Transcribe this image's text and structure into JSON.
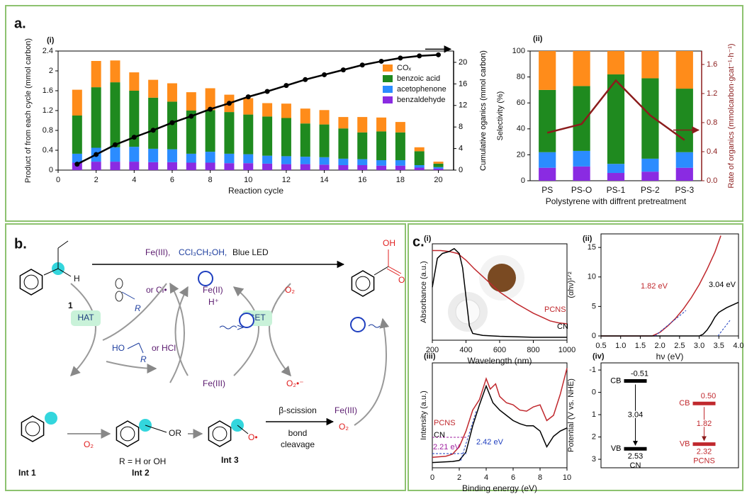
{
  "panels": {
    "a": "a.",
    "b": "b.",
    "c": "c."
  },
  "chart_data": [
    {
      "type": "bar",
      "stacked": true,
      "panel_label": "(i)",
      "xlabel": "Reaction cycle",
      "ylabel": "Product of from each cycle (mmol carbon)",
      "y2label": "Cumulative oganics (mmol carbon)",
      "x": [
        1,
        2,
        3,
        4,
        5,
        6,
        7,
        8,
        9,
        10,
        11,
        12,
        13,
        14,
        15,
        16,
        17,
        18,
        19,
        20
      ],
      "xlim": [
        0,
        20.8
      ],
      "xticks": [
        0,
        2,
        4,
        6,
        8,
        10,
        12,
        14,
        16,
        18,
        20
      ],
      "ylim": [
        0,
        2.4
      ],
      "yticks": [
        0,
        0.4,
        0.8,
        1.2,
        1.6,
        2,
        2.4
      ],
      "y2lim": [
        0,
        22.1
      ],
      "y2ticks": [
        0,
        4,
        8,
        12,
        16,
        20
      ],
      "y2color": "#000000",
      "legend": "upper right",
      "series": [
        {
          "name": "benzaldehyde",
          "color": "#8a2be2",
          "values": [
            0.15,
            0.17,
            0.17,
            0.17,
            0.16,
            0.16,
            0.15,
            0.15,
            0.14,
            0.14,
            0.13,
            0.12,
            0.12,
            0.11,
            0.1,
            0.1,
            0.09,
            0.09,
            0.05,
            0.03
          ]
        },
        {
          "name": "acetophenone",
          "color": "#2b8cff",
          "values": [
            0.18,
            0.28,
            0.29,
            0.3,
            0.27,
            0.26,
            0.18,
            0.22,
            0.19,
            0.18,
            0.16,
            0.16,
            0.15,
            0.15,
            0.13,
            0.12,
            0.11,
            0.11,
            0.05,
            0.03
          ]
        },
        {
          "name": "benzoic acid",
          "color": "#1f8a1f",
          "values": [
            0.77,
            1.22,
            1.31,
            1.13,
            1.03,
            0.96,
            0.87,
            0.84,
            0.84,
            0.8,
            0.79,
            0.77,
            0.67,
            0.66,
            0.61,
            0.54,
            0.58,
            0.56,
            0.28,
            0.07
          ]
        },
        {
          "name": "COₓ",
          "color": "#ff8c1a",
          "values": [
            0.52,
            0.53,
            0.44,
            0.37,
            0.36,
            0.37,
            0.37,
            0.44,
            0.35,
            0.33,
            0.27,
            0.29,
            0.3,
            0.29,
            0.23,
            0.31,
            0.28,
            0.21,
            0.08,
            0.04
          ]
        },
        {
          "axis": "y2",
          "color": "#000000",
          "marker": true,
          "values": [
            1.1,
            2.9,
            4.7,
            6.1,
            7.4,
            8.8,
            10.0,
            11.3,
            12.4,
            13.6,
            14.6,
            15.7,
            16.8,
            17.7,
            18.6,
            19.5,
            20.2,
            20.8,
            21.2,
            21.4
          ]
        }
      ]
    },
    {
      "type": "bar",
      "stacked": true,
      "panel_label": "(ii)",
      "xlabel": "Polystyrene with diffrent pretreatment",
      "ylabel": "Selectivity (%)",
      "y2label": "Rate of organics (mmolcarbon·gcat⁻¹·h⁻¹)",
      "categories": [
        "PS",
        "PS-O",
        "PS-1",
        "PS-2",
        "PS-3"
      ],
      "ylim": [
        0,
        100
      ],
      "yticks": [
        0,
        20,
        40,
        60,
        80,
        100
      ],
      "y2lim": [
        0,
        1.785
      ],
      "y2ticks": [
        {
          "value": 0,
          "label": "0.0"
        },
        0.4,
        0.8,
        1.2,
        1.6
      ],
      "y2color": "#8b1c1c",
      "legend": false,
      "series": [
        {
          "name": "benzaldehyde",
          "color": "#8a2be2",
          "values": [
            10,
            11,
            6,
            7,
            10
          ]
        },
        {
          "name": "acetophenone",
          "color": "#2b8cff",
          "values": [
            12,
            12,
            7,
            10,
            12
          ]
        },
        {
          "name": "benzoic acid",
          "color": "#1f8a1f",
          "values": [
            48,
            50,
            69,
            62,
            49
          ]
        },
        {
          "name": "COₓ",
          "color": "#ff8c1a",
          "values": [
            30,
            27,
            18,
            21,
            29
          ]
        },
        {
          "axis": "y2",
          "color": "#8b1c1c",
          "marker": false,
          "values": [
            0.66,
            0.78,
            1.38,
            0.9,
            0.56
          ]
        }
      ]
    },
    {
      "type": "line",
      "panel_label": "(i)",
      "xlabel": "Wavelength (nm)",
      "ylabel": "Absorbance (a.u.)",
      "xlim": [
        200,
        1000
      ],
      "xticks": [
        200,
        400,
        600,
        800,
        1000
      ],
      "ylim": [
        0,
        1
      ],
      "series": [
        {
          "name": "PCNS",
          "color": "#c0282d",
          "x": [
            200,
            250,
            300,
            350,
            400,
            450,
            500,
            550,
            600,
            650,
            700,
            750,
            800,
            850,
            900,
            950,
            1000
          ],
          "values": [
            0.93,
            0.93,
            0.92,
            0.9,
            0.83,
            0.74,
            0.66,
            0.58,
            0.5,
            0.44,
            0.38,
            0.33,
            0.28,
            0.24,
            0.2,
            0.18,
            0.17
          ]
        },
        {
          "name": "CN",
          "color": "#000000",
          "x": [
            200,
            230,
            260,
            300,
            330,
            360,
            380,
            400,
            420,
            440,
            500,
            600,
            800,
            1000
          ],
          "values": [
            0.55,
            0.85,
            0.9,
            0.92,
            0.95,
            0.9,
            0.75,
            0.45,
            0.15,
            0.07,
            0.05,
            0.04,
            0.03,
            0.03
          ]
        }
      ]
    },
    {
      "type": "line",
      "panel_label": "(ii)",
      "xlabel": "hν (eV)",
      "ylabel": "(αhν)¹ᐟ²",
      "xlim": [
        0.5,
        4.0
      ],
      "xticks": [
        0.5,
        {
          "value": 1,
          "label": "1.0"
        },
        1.5,
        {
          "value": 2,
          "label": "2.0"
        },
        2.5,
        {
          "value": 3,
          "label": "3.0"
        },
        3.5,
        {
          "value": 4,
          "label": "4.0"
        }
      ],
      "ylim": [
        0,
        17.3
      ],
      "yticks": [
        0,
        5,
        10,
        15
      ],
      "annotations": [
        {
          "text": "1.82 eV",
          "color": "#c0282d"
        },
        {
          "text": "3.04 eV",
          "color": "#000000"
        }
      ],
      "series": [
        {
          "color": "#c0282d",
          "x": [
            0.5,
            1.8,
            2.0,
            2.2,
            2.4,
            2.6,
            2.8,
            3.0,
            3.2,
            3.4,
            3.55
          ],
          "values": [
            0,
            0,
            0.6,
            1.7,
            3.0,
            4.6,
            6.5,
            8.7,
            11.3,
            14.2,
            17.0
          ]
        },
        {
          "color": "#000000",
          "x": [
            0.5,
            3.0,
            3.1,
            3.2,
            3.3,
            3.4,
            3.5,
            3.7,
            3.9,
            4.0
          ],
          "values": [
            0,
            0,
            0.3,
            1.0,
            2.0,
            3.2,
            4.0,
            4.8,
            5.4,
            5.7
          ]
        }
      ]
    },
    {
      "type": "line",
      "panel_label": "(iii)",
      "xlabel": "Binding energy (eV)",
      "ylabel": "Intensity (a.u.)",
      "xlim": [
        0,
        10
      ],
      "xticks": [
        0,
        2,
        4,
        6,
        8,
        10
      ],
      "ylim": [
        0,
        1
      ],
      "annotations": [
        {
          "text": "2.21 eV",
          "color": "#a020a0"
        },
        {
          "text": "2.42 eV",
          "color": "#1f3fbf"
        }
      ],
      "series": [
        {
          "name": "PCNS",
          "color": "#c0282d",
          "x": [
            0,
            1,
            1.5,
            2,
            2.5,
            3,
            3.5,
            4,
            4.3,
            4.7,
            5,
            5.5,
            6,
            6.5,
            7,
            7.5,
            8,
            8.5,
            9,
            9.5,
            10
          ],
          "values": [
            0.1,
            0.11,
            0.13,
            0.2,
            0.35,
            0.55,
            0.65,
            0.85,
            0.75,
            0.8,
            0.68,
            0.62,
            0.6,
            0.55,
            0.54,
            0.58,
            0.6,
            0.45,
            0.5,
            0.7,
            0.95
          ]
        },
        {
          "name": "CN",
          "color": "#000000",
          "x": [
            0,
            1.5,
            2,
            2.5,
            3,
            3.5,
            4,
            4.5,
            5,
            5.5,
            6,
            6.5,
            7,
            7.5,
            8,
            8.5,
            9,
            9.5,
            10
          ],
          "values": [
            0.05,
            0.06,
            0.07,
            0.15,
            0.4,
            0.6,
            0.78,
            0.62,
            0.55,
            0.5,
            0.45,
            0.42,
            0.4,
            0.4,
            0.35,
            0.2,
            0.3,
            0.35,
            0.38
          ]
        }
      ]
    },
    {
      "type": "bands",
      "panel_label": "(iv)",
      "ylabel": "Potential (V vs. NHE)",
      "ylim": [
        3.38,
        -1.32
      ],
      "yticks": [
        -1,
        0,
        1,
        2,
        3
      ],
      "categories": [
        "CN",
        "PCNS"
      ],
      "colors": [
        "#000000",
        "#c0282d"
      ],
      "series": [
        {
          "name": "CB",
          "values": [
            -0.51,
            0.5
          ],
          "value_labels": [
            "-0.51",
            "0.50"
          ]
        },
        {
          "name": "VB",
          "values": [
            2.53,
            2.32
          ]
        }
      ],
      "gaps": [
        3.04,
        1.82
      ]
    }
  ],
  "diagram": {
    "reagent_metal": "Fe(III),",
    "reagent_alcohol": "CCl₃CH₂OH,",
    "reagent_light": "Blue LED",
    "substrate_label": "1",
    "substrate_h": "H",
    "radical_r": "R",
    "radical_or": "or Cl•",
    "hat": "HAT",
    "set": "SET",
    "fe2": "Fe(II)",
    "proton": "H⁺",
    "o2_top": "O₂",
    "alcohol_ho": "HO",
    "alcohol_r": "R",
    "alcohol_or": "or HCl",
    "fe3_mid": "Fe(III)",
    "superoxide": "O₂•⁻",
    "product_oh": "OH",
    "product_o": "O",
    "int1": "Int 1",
    "o2_int": "O₂",
    "int2_or": "OR",
    "int2_r": "R = H or OH",
    "int2": "Int 2",
    "int3": "Int 3",
    "int3_o": "O•",
    "beta": "β-scission",
    "bond": "bond",
    "cleavage": "cleavage",
    "fe3_end": "Fe(III)",
    "o2_end": "O₂"
  }
}
